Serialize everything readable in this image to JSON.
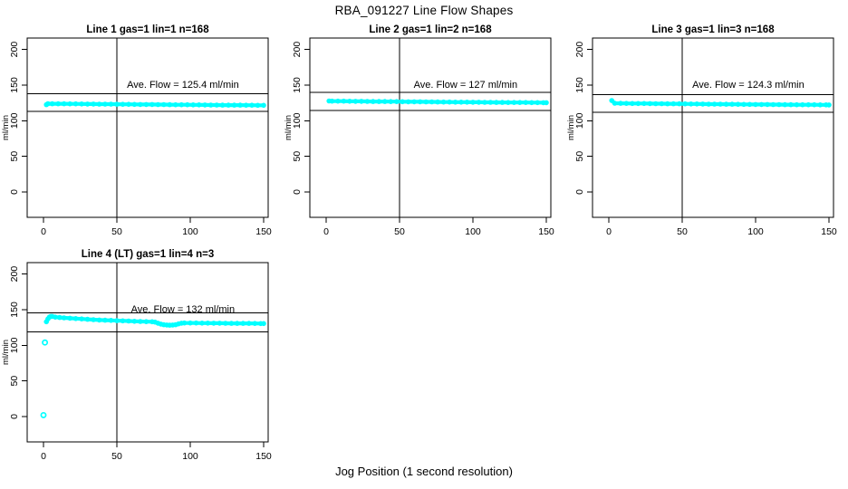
{
  "page": {
    "title": "RBA_091227  Line Flow Shapes",
    "xlabel": "Jog Position (1 second resolution)",
    "background": "#ffffff",
    "point_color": "#00ffff",
    "axis_color": "#000000"
  },
  "chart_data": [
    {
      "type": "scatter",
      "title": "Line 1 gas=1 lin=1 n=168",
      "annotation": "Ave. Flow =  125.4  ml/min",
      "ave_flow": 125.4,
      "ylabel": "ml/min",
      "xlim": [
        0,
        150
      ],
      "ylim": [
        0,
        200
      ],
      "x_ticks": [
        0,
        50,
        100,
        150
      ],
      "y_ticks": [
        0,
        50,
        100,
        150,
        200
      ],
      "vline_x": 50,
      "hlines": [
        137.9,
        112.9
      ],
      "outliers": [],
      "band": [
        [
          2,
          122.5
        ],
        [
          3,
          123.9
        ],
        [
          6,
          123.8
        ],
        [
          10,
          123.8
        ],
        [
          14,
          123.7
        ],
        [
          18,
          123.6
        ],
        [
          22,
          123.6
        ],
        [
          26,
          123.5
        ],
        [
          30,
          123.4
        ],
        [
          34,
          123.4
        ],
        [
          38,
          123.3
        ],
        [
          42,
          123.2
        ],
        [
          46,
          123.2
        ],
        [
          50,
          123.1
        ],
        [
          54,
          123.0
        ],
        [
          58,
          123.0
        ],
        [
          62,
          122.9
        ],
        [
          66,
          122.8
        ],
        [
          70,
          122.8
        ],
        [
          74,
          122.7
        ],
        [
          78,
          122.6
        ],
        [
          82,
          122.6
        ],
        [
          86,
          122.5
        ],
        [
          90,
          122.4
        ],
        [
          94,
          122.4
        ],
        [
          98,
          122.3
        ],
        [
          102,
          122.2
        ],
        [
          106,
          122.2
        ],
        [
          110,
          122.1
        ],
        [
          114,
          122.0
        ],
        [
          118,
          122.0
        ],
        [
          122,
          121.9
        ],
        [
          126,
          121.9
        ],
        [
          130,
          121.8
        ],
        [
          134,
          121.8
        ],
        [
          138,
          121.7
        ],
        [
          142,
          121.7
        ],
        [
          146,
          121.6
        ],
        [
          150,
          121.6
        ]
      ]
    },
    {
      "type": "scatter",
      "title": "Line 2 gas=1 lin=2 n=168",
      "annotation": "Ave. Flow =  127  ml/min",
      "ave_flow": 127,
      "ylabel": "ml/min",
      "xlim": [
        0,
        150
      ],
      "ylim": [
        0,
        200
      ],
      "x_ticks": [
        0,
        50,
        100,
        150
      ],
      "y_ticks": [
        0,
        50,
        100,
        150,
        200
      ],
      "vline_x": 50,
      "hlines": [
        139.7,
        114.3
      ],
      "outliers": [],
      "band": [
        [
          2,
          127.7
        ],
        [
          4,
          127.5
        ],
        [
          8,
          127.4
        ],
        [
          12,
          127.4
        ],
        [
          16,
          127.3
        ],
        [
          20,
          127.2
        ],
        [
          24,
          127.2
        ],
        [
          28,
          127.1
        ],
        [
          32,
          127.0
        ],
        [
          36,
          127.0
        ],
        [
          40,
          126.9
        ],
        [
          44,
          126.8
        ],
        [
          48,
          126.8
        ],
        [
          52,
          126.7
        ],
        [
          56,
          126.6
        ],
        [
          60,
          126.6
        ],
        [
          64,
          126.5
        ],
        [
          68,
          126.4
        ],
        [
          72,
          126.4
        ],
        [
          76,
          126.3
        ],
        [
          80,
          126.2
        ],
        [
          84,
          126.2
        ],
        [
          88,
          126.1
        ],
        [
          92,
          126.0
        ],
        [
          96,
          126.0
        ],
        [
          100,
          125.9
        ],
        [
          104,
          125.9
        ],
        [
          108,
          125.8
        ],
        [
          112,
          125.8
        ],
        [
          116,
          125.7
        ],
        [
          120,
          125.7
        ],
        [
          124,
          125.6
        ],
        [
          128,
          125.6
        ],
        [
          132,
          125.5
        ],
        [
          136,
          125.5
        ],
        [
          140,
          125.4
        ],
        [
          144,
          125.4
        ],
        [
          148,
          125.3
        ],
        [
          150,
          125.3
        ]
      ]
    },
    {
      "type": "scatter",
      "title": "Line 3 gas=1 lin=3 n=168",
      "annotation": "Ave. Flow =  124.3  ml/min",
      "ave_flow": 124.3,
      "ylabel": "ml/min",
      "xlim": [
        0,
        150
      ],
      "ylim": [
        0,
        200
      ],
      "x_ticks": [
        0,
        50,
        100,
        150
      ],
      "y_ticks": [
        0,
        50,
        100,
        150,
        200
      ],
      "vline_x": 50,
      "hlines": [
        136.7,
        111.9
      ],
      "outliers": [],
      "band": [
        [
          2,
          128.3
        ],
        [
          4,
          124.5
        ],
        [
          8,
          124.4
        ],
        [
          12,
          124.3
        ],
        [
          16,
          124.2
        ],
        [
          20,
          124.1
        ],
        [
          24,
          124.1
        ],
        [
          28,
          124.0
        ],
        [
          32,
          123.9
        ],
        [
          36,
          123.9
        ],
        [
          40,
          123.8
        ],
        [
          44,
          123.7
        ],
        [
          48,
          123.7
        ],
        [
          52,
          123.6
        ],
        [
          56,
          123.5
        ],
        [
          60,
          123.5
        ],
        [
          64,
          123.4
        ],
        [
          68,
          123.3
        ],
        [
          72,
          123.3
        ],
        [
          76,
          123.2
        ],
        [
          80,
          123.1
        ],
        [
          84,
          123.1
        ],
        [
          88,
          123.0
        ],
        [
          92,
          122.9
        ],
        [
          96,
          122.9
        ],
        [
          100,
          122.8
        ],
        [
          104,
          122.8
        ],
        [
          108,
          122.7
        ],
        [
          112,
          122.6
        ],
        [
          116,
          122.6
        ],
        [
          120,
          122.5
        ],
        [
          124,
          122.5
        ],
        [
          128,
          122.4
        ],
        [
          132,
          122.4
        ],
        [
          136,
          122.3
        ],
        [
          140,
          122.3
        ],
        [
          144,
          122.2
        ],
        [
          148,
          122.2
        ],
        [
          150,
          122.1
        ]
      ]
    },
    {
      "type": "scatter",
      "title": "Line 4 (LT) gas=1 lin=4 n=3",
      "annotation": "Ave. Flow =  132  ml/min",
      "ave_flow": 132,
      "ylabel": "ml/min",
      "xlim": [
        0,
        150
      ],
      "ylim": [
        0,
        200
      ],
      "x_ticks": [
        0,
        50,
        100,
        150
      ],
      "y_ticks": [
        0,
        50,
        100,
        150,
        200
      ],
      "vline_x": 50,
      "hlines": [
        145.2,
        118.8
      ],
      "outliers": [
        [
          0,
          2
        ],
        [
          1,
          104
        ]
      ],
      "band": [
        [
          2,
          133.0
        ],
        [
          3,
          137.0
        ],
        [
          4,
          139.5
        ],
        [
          5,
          140.5
        ],
        [
          6,
          140.5
        ],
        [
          8,
          139.5
        ],
        [
          11,
          139.0
        ],
        [
          14,
          138.5
        ],
        [
          18,
          138.0
        ],
        [
          22,
          137.5
        ],
        [
          26,
          137.0
        ],
        [
          30,
          136.5
        ],
        [
          34,
          136.0
        ],
        [
          38,
          135.5
        ],
        [
          42,
          135.2
        ],
        [
          46,
          134.9
        ],
        [
          50,
          134.6
        ],
        [
          54,
          134.3
        ],
        [
          58,
          134.0
        ],
        [
          62,
          133.7
        ],
        [
          66,
          133.4
        ],
        [
          70,
          133.2
        ],
        [
          74,
          133.0
        ],
        [
          76,
          132.5
        ],
        [
          78,
          131.0
        ],
        [
          80,
          129.7
        ],
        [
          82,
          128.9
        ],
        [
          84,
          128.4
        ],
        [
          86,
          128.2
        ],
        [
          88,
          128.4
        ],
        [
          90,
          128.9
        ],
        [
          92,
          130.0
        ],
        [
          94,
          131.0
        ],
        [
          96,
          131.3
        ],
        [
          100,
          131.3
        ],
        [
          104,
          131.2
        ],
        [
          108,
          131.1
        ],
        [
          112,
          131.1
        ],
        [
          116,
          131.0
        ],
        [
          120,
          131.0
        ],
        [
          124,
          130.9
        ],
        [
          128,
          130.8
        ],
        [
          132,
          130.8
        ],
        [
          136,
          130.7
        ],
        [
          140,
          130.7
        ],
        [
          144,
          130.6
        ],
        [
          148,
          130.5
        ],
        [
          150,
          130.5
        ]
      ]
    }
  ]
}
